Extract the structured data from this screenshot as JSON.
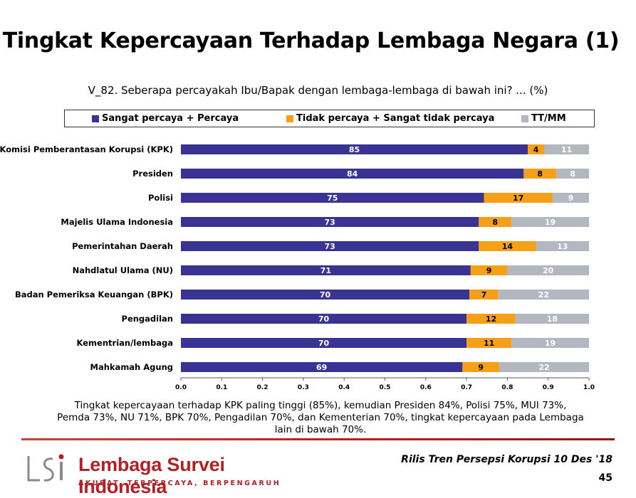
{
  "title": "Tingkat Kepercayaan Terhadap Lembaga Negara (1)",
  "question": "V_82. Seberapa percayakah Ibu/Bapak dengan lembaga-lembaga di bawah ini? ... (%)",
  "summary": "Tingkat kepercayaan terhadap KPK paling tinggi (85%), kemudian Presiden 84%, Polisi 75%, MUI 73%, Pemda 73%, NU 71%, BPK 70%, Pengadilan 70%, dan Kementerian 70%, tingkat kepercayaan pada Lembaga lain di bawah 70%.",
  "footer": {
    "org_name": "Lembaga Survei Indonesia",
    "tagline": "AKURAT, TERPERCAYA, BERPENGARUH",
    "release": "Rilis Tren Persepsi Korupsi 10 Des '18",
    "page_number": "45"
  },
  "chart_data": {
    "type": "bar",
    "orientation": "horizontal",
    "stacked": true,
    "normalized": true,
    "categories": [
      "Komisi Pemberantasan Korupsi (KPK)",
      "Presiden",
      "Polisi",
      "Majelis Ulama Indonesia",
      "Pemerintahan Daerah",
      "Nahdlatul Ulama (NU)",
      "Badan Pemeriksa Keuangan (BPK)",
      "Pengadilan",
      "Kementrian/lembaga",
      "Mahkamah Agung"
    ],
    "series": [
      {
        "name": "Sangat percaya + Percaya",
        "color": "#3a3393",
        "values": [
          85,
          84,
          75,
          73,
          73,
          71,
          70,
          70,
          70,
          69
        ]
      },
      {
        "name": "Tidak percaya + Sangat tidak percaya",
        "color": "#f6a01a",
        "values": [
          4,
          8,
          17,
          8,
          14,
          9,
          7,
          12,
          11,
          9
        ]
      },
      {
        "name": "TT/MM",
        "color": "#b3b7bf",
        "values": [
          11,
          8,
          9,
          19,
          13,
          20,
          22,
          18,
          19,
          22
        ]
      }
    ],
    "xlim": [
      0,
      1
    ],
    "xticks": [
      "0.0",
      "0.1",
      "0.2",
      "0.3",
      "0.4",
      "0.5",
      "0.6",
      "0.7",
      "0.8",
      "0.9",
      "1.0"
    ],
    "legend_position": "top"
  }
}
